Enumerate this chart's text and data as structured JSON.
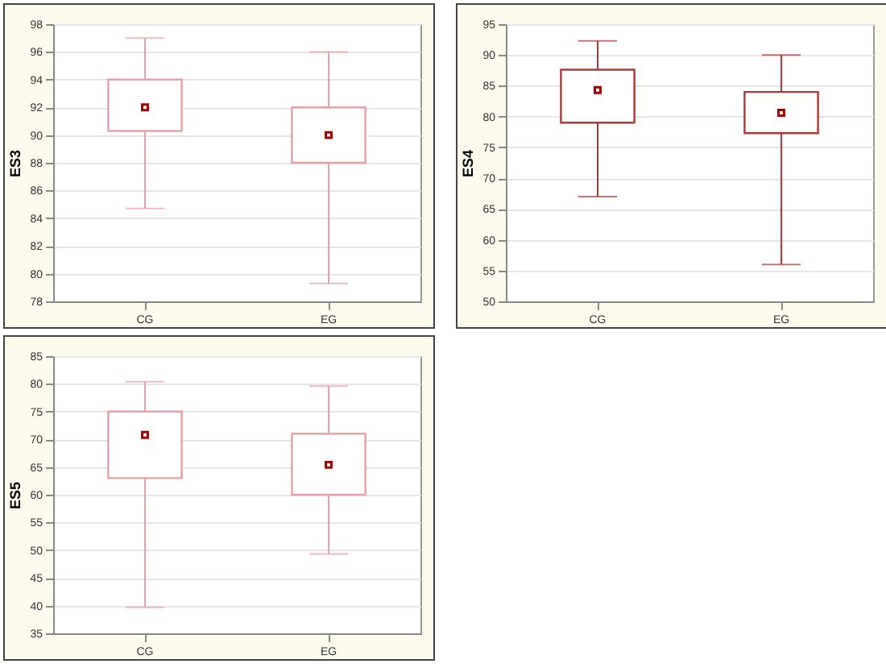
{
  "chart_data": [
    {
      "type": "box",
      "categories": [
        "CG",
        "EG"
      ],
      "ylabel": "ES3",
      "ylim": [
        78,
        98
      ],
      "yticks": [
        78,
        80,
        82,
        84,
        86,
        88,
        90,
        92,
        94,
        96,
        98
      ],
      "grid": "y",
      "color": "#e8a0a8",
      "boxes": [
        {
          "low": 84.7,
          "q1": 90.3,
          "median": 92,
          "q3": 94,
          "high": 97
        },
        {
          "low": 79.3,
          "q1": 88,
          "median": 90,
          "q3": 92,
          "high": 96
        }
      ]
    },
    {
      "type": "box",
      "categories": [
        "CG",
        "EG"
      ],
      "ylabel": "ES4",
      "ylim": [
        50,
        95
      ],
      "yticks": [
        50,
        55,
        60,
        65,
        70,
        75,
        80,
        85,
        90,
        95
      ],
      "grid": "y",
      "color": "#b03838",
      "boxes": [
        {
          "low": 67,
          "q1": 79,
          "median": 84.3,
          "q3": 87.6,
          "high": 92.3
        },
        {
          "low": 56,
          "q1": 77.3,
          "median": 80.6,
          "q3": 84,
          "high": 90
        }
      ]
    },
    {
      "type": "box",
      "categories": [
        "CG",
        "EG"
      ],
      "ylabel": "ES5",
      "ylim": [
        35,
        85
      ],
      "yticks": [
        35,
        40,
        45,
        50,
        55,
        60,
        65,
        70,
        75,
        80,
        85
      ],
      "grid": "y",
      "color": "#e8a0a8",
      "boxes": [
        {
          "low": 39.7,
          "q1": 63,
          "median": 70.8,
          "q3": 75,
          "high": 80.4
        },
        {
          "low": 49.3,
          "q1": 60,
          "median": 65.4,
          "q3": 71,
          "high": 79.6
        }
      ]
    }
  ]
}
